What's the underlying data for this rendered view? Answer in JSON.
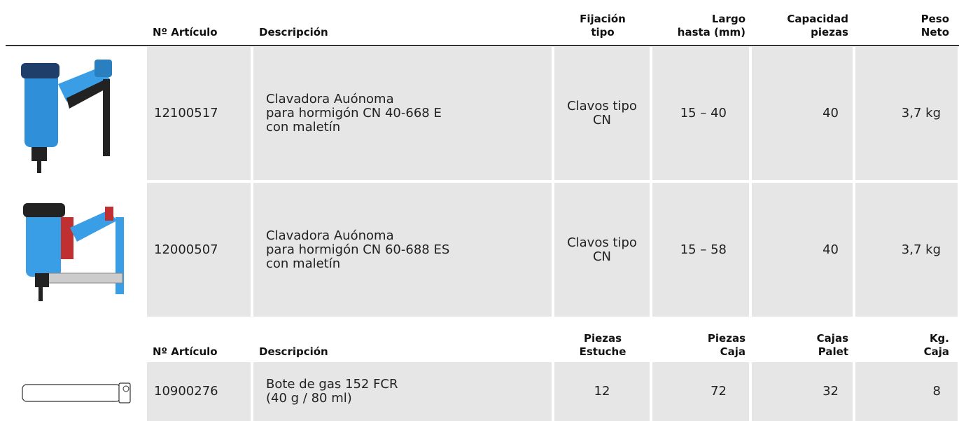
{
  "table1": {
    "headers": [
      [
        "Nº Artículo"
      ],
      [
        "Descripción"
      ],
      [
        "Fijación",
        "tipo"
      ],
      [
        "Largo",
        "hasta (mm)"
      ],
      [
        "Capacidad",
        "piezas"
      ],
      [
        "Peso",
        "Neto"
      ]
    ],
    "rows": [
      [
        [
          "12100517"
        ],
        [
          "Clavadora Auónoma",
          "para hormigón CN 40-668 E",
          "con maletín"
        ],
        [
          "Clavos tipo",
          "CN"
        ],
        [
          "15 – 40"
        ],
        [
          "40"
        ],
        [
          "3,7 kg"
        ]
      ],
      [
        [
          "12000507"
        ],
        [
          "Clavadora Auónoma",
          "para hormigón CN 60-688 ES",
          "con maletín"
        ],
        [
          "Clavos tipo",
          "CN"
        ],
        [
          "15 – 58"
        ],
        [
          "40"
        ],
        [
          "3,7 kg"
        ]
      ]
    ]
  },
  "table2": {
    "headers": [
      [
        "Nº Artículo"
      ],
      [
        "Descripción"
      ],
      [
        "Piezas",
        "Estuche"
      ],
      [
        "Piezas",
        "Caja"
      ],
      [
        "Cajas",
        "Palet"
      ],
      [
        "Kg.",
        "Caja"
      ]
    ],
    "rows": [
      [
        [
          "10900276"
        ],
        [
          "Bote de gas 152 FCR",
          "(40 g / 80 ml)"
        ],
        [
          "12"
        ],
        [
          "72"
        ],
        [
          "32"
        ],
        [
          "8"
        ]
      ]
    ]
  }
}
